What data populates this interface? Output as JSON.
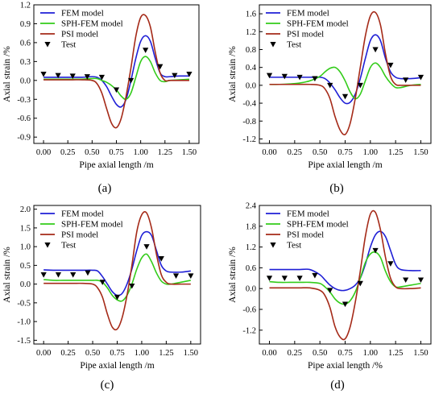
{
  "chart_data": [
    {
      "type": "line",
      "panel_label": "(a)",
      "xlabel": "Pipe axial length /m",
      "ylabel": "Axial strain /%",
      "xlim": [
        -0.1,
        1.6
      ],
      "ylim": [
        -1.0,
        1.2
      ],
      "xticks": [
        0.0,
        0.25,
        0.5,
        0.75,
        1.0,
        1.25,
        1.5
      ],
      "xtick_labels": [
        "0.00",
        "0.25",
        "0.50",
        "0.75",
        "1.00",
        "1.25",
        "1.50"
      ],
      "yticks": [
        -0.9,
        -0.6,
        -0.3,
        0.0,
        0.3,
        0.6,
        0.9,
        1.2
      ],
      "ytick_labels": [
        "-0.9",
        "-0.6",
        "-0.3",
        "0.0",
        "0.3",
        "0.6",
        "0.9",
        "1.2"
      ],
      "legend_position": "top-left",
      "series": [
        {
          "name": "FEM model",
          "color": "#1f1fd6",
          "x": [
            0.0,
            0.1,
            0.2,
            0.3,
            0.4,
            0.5,
            0.55,
            0.6,
            0.65,
            0.7,
            0.75,
            0.8,
            0.85,
            0.9,
            0.95,
            1.0,
            1.05,
            1.1,
            1.15,
            1.2,
            1.25,
            1.3,
            1.4,
            1.5
          ],
          "y": [
            0.05,
            0.05,
            0.05,
            0.05,
            0.05,
            0.06,
            0.05,
            0.0,
            -0.1,
            -0.25,
            -0.38,
            -0.42,
            -0.3,
            0.0,
            0.35,
            0.62,
            0.71,
            0.62,
            0.35,
            0.12,
            0.06,
            0.06,
            0.07,
            0.07
          ]
        },
        {
          "name": "SPH-FEM model",
          "color": "#33cc1a",
          "x": [
            0.0,
            0.1,
            0.2,
            0.3,
            0.4,
            0.5,
            0.55,
            0.6,
            0.65,
            0.7,
            0.75,
            0.8,
            0.85,
            0.9,
            0.95,
            1.0,
            1.05,
            1.1,
            1.15,
            1.2,
            1.25,
            1.3,
            1.4,
            1.5
          ],
          "y": [
            0.02,
            0.02,
            0.02,
            0.02,
            0.02,
            0.03,
            0.03,
            0.0,
            -0.03,
            -0.08,
            -0.15,
            -0.25,
            -0.3,
            -0.2,
            0.05,
            0.3,
            0.38,
            0.3,
            0.12,
            0.0,
            -0.02,
            0.0,
            0.01,
            0.02
          ]
        },
        {
          "name": "PSI model",
          "color": "#a52a18",
          "x": [
            0.0,
            0.1,
            0.2,
            0.3,
            0.4,
            0.5,
            0.55,
            0.6,
            0.65,
            0.7,
            0.75,
            0.8,
            0.85,
            0.9,
            0.95,
            1.0,
            1.05,
            1.1,
            1.15,
            1.2,
            1.25,
            1.3,
            1.4,
            1.5
          ],
          "y": [
            0.01,
            0.01,
            0.01,
            0.01,
            0.01,
            0.0,
            -0.05,
            -0.2,
            -0.45,
            -0.68,
            -0.75,
            -0.6,
            -0.25,
            0.2,
            0.7,
            1.0,
            1.03,
            0.85,
            0.45,
            0.12,
            0.0,
            0.0,
            0.0,
            0.0
          ]
        },
        {
          "name": "Test",
          "color": "#000000",
          "marker": "triangle-down",
          "x": [
            0.0,
            0.15,
            0.3,
            0.45,
            0.6,
            0.75,
            0.9,
            1.05,
            1.2,
            1.35,
            1.5
          ],
          "y": [
            0.1,
            0.08,
            0.07,
            0.06,
            0.05,
            -0.15,
            0.0,
            0.48,
            0.22,
            0.08,
            0.1
          ]
        }
      ]
    },
    {
      "type": "line",
      "panel_label": "(b)",
      "xlabel": "Pipe axial length /m",
      "ylabel": "Axial strain /%",
      "xlim": [
        -0.1,
        1.6
      ],
      "ylim": [
        -1.3,
        1.8
      ],
      "xticks": [
        0.0,
        0.25,
        0.5,
        0.75,
        1.0,
        1.25,
        1.5
      ],
      "xtick_labels": [
        "0.00",
        "0.25",
        "0.50",
        "0.75",
        "1.00",
        "1.25",
        "1.50"
      ],
      "yticks": [
        -1.2,
        -0.8,
        -0.4,
        0.0,
        0.4,
        0.8,
        1.2,
        1.6
      ],
      "ytick_labels": [
        "-1.2",
        "-0.8",
        "-0.4",
        "0.0",
        "0.4",
        "0.8",
        "1.2",
        "1.6"
      ],
      "legend_position": "top-left",
      "series": [
        {
          "name": "FEM model",
          "color": "#1f1fd6",
          "x": [
            0.0,
            0.1,
            0.2,
            0.3,
            0.4,
            0.5,
            0.55,
            0.6,
            0.65,
            0.7,
            0.75,
            0.8,
            0.85,
            0.9,
            0.95,
            1.0,
            1.05,
            1.1,
            1.15,
            1.2,
            1.25,
            1.3,
            1.4,
            1.5
          ],
          "y": [
            0.18,
            0.18,
            0.18,
            0.18,
            0.18,
            0.18,
            0.15,
            0.05,
            -0.1,
            -0.28,
            -0.4,
            -0.38,
            -0.2,
            0.15,
            0.6,
            1.0,
            1.13,
            1.0,
            0.6,
            0.3,
            0.18,
            0.15,
            0.15,
            0.17
          ]
        },
        {
          "name": "SPH-FEM model",
          "color": "#33cc1a",
          "x": [
            0.0,
            0.1,
            0.2,
            0.3,
            0.4,
            0.5,
            0.55,
            0.6,
            0.65,
            0.7,
            0.75,
            0.8,
            0.85,
            0.9,
            0.95,
            1.0,
            1.05,
            1.1,
            1.15,
            1.2,
            1.25,
            1.3,
            1.4,
            1.5
          ],
          "y": [
            0.02,
            0.02,
            0.03,
            0.05,
            0.1,
            0.2,
            0.3,
            0.38,
            0.4,
            0.3,
            0.1,
            -0.15,
            -0.3,
            -0.2,
            0.1,
            0.4,
            0.5,
            0.4,
            0.2,
            0.05,
            -0.05,
            -0.05,
            0.0,
            0.02
          ]
        },
        {
          "name": "PSI model",
          "color": "#a52a18",
          "x": [
            0.0,
            0.1,
            0.2,
            0.3,
            0.4,
            0.5,
            0.55,
            0.6,
            0.65,
            0.7,
            0.75,
            0.8,
            0.85,
            0.9,
            0.95,
            1.0,
            1.05,
            1.1,
            1.15,
            1.2,
            1.25,
            1.3,
            1.4,
            1.5
          ],
          "y": [
            0.02,
            0.02,
            0.02,
            0.02,
            0.02,
            0.0,
            -0.08,
            -0.3,
            -0.7,
            -1.0,
            -1.1,
            -0.85,
            -0.3,
            0.4,
            1.1,
            1.55,
            1.63,
            1.35,
            0.7,
            0.2,
            0.02,
            0.0,
            0.0,
            0.0
          ]
        },
        {
          "name": "Test",
          "color": "#000000",
          "marker": "triangle-down",
          "x": [
            0.0,
            0.15,
            0.3,
            0.45,
            0.6,
            0.75,
            0.9,
            1.05,
            1.2,
            1.35,
            1.5
          ],
          "y": [
            0.22,
            0.2,
            0.18,
            0.15,
            0.0,
            -0.25,
            0.0,
            0.8,
            0.45,
            0.12,
            0.18
          ]
        }
      ]
    },
    {
      "type": "line",
      "panel_label": "(c)",
      "xlabel": "Pipe axial length /m",
      "ylabel": "Axial strain /%",
      "xlim": [
        -0.1,
        1.6
      ],
      "ylim": [
        -1.6,
        2.1
      ],
      "xticks": [
        0.0,
        0.25,
        0.5,
        0.75,
        1.0,
        1.25,
        1.5
      ],
      "xtick_labels": [
        "0.00",
        "0.25",
        "0.50",
        "0.75",
        "1.00",
        "1.25",
        "1.50"
      ],
      "yticks": [
        -1.5,
        -1.0,
        -0.5,
        0.0,
        0.5,
        1.0,
        1.5,
        2.0
      ],
      "ytick_labels": [
        "-1.5",
        "-1.0",
        "-0.5",
        "0.0",
        "0.5",
        "1.0",
        "1.5",
        "2.0"
      ],
      "legend_position": "top-left",
      "series": [
        {
          "name": "FEM model",
          "color": "#1f1fd6",
          "x": [
            0.0,
            0.1,
            0.2,
            0.3,
            0.4,
            0.5,
            0.55,
            0.6,
            0.65,
            0.7,
            0.75,
            0.8,
            0.85,
            0.9,
            0.95,
            1.0,
            1.05,
            1.1,
            1.15,
            1.2,
            1.25,
            1.3,
            1.4,
            1.5
          ],
          "y": [
            0.38,
            0.37,
            0.37,
            0.37,
            0.37,
            0.37,
            0.35,
            0.2,
            0.0,
            -0.2,
            -0.3,
            -0.25,
            0.0,
            0.4,
            0.9,
            1.3,
            1.4,
            1.3,
            0.9,
            0.5,
            0.35,
            0.32,
            0.32,
            0.35
          ]
        },
        {
          "name": "SPH-FEM model",
          "color": "#33cc1a",
          "x": [
            0.0,
            0.1,
            0.2,
            0.3,
            0.4,
            0.5,
            0.55,
            0.6,
            0.65,
            0.7,
            0.75,
            0.8,
            0.85,
            0.9,
            0.95,
            1.0,
            1.05,
            1.1,
            1.15,
            1.2,
            1.25,
            1.3,
            1.4,
            1.5
          ],
          "y": [
            0.12,
            0.1,
            0.1,
            0.1,
            0.1,
            0.1,
            0.1,
            0.05,
            -0.1,
            -0.3,
            -0.42,
            -0.45,
            -0.3,
            0.0,
            0.4,
            0.7,
            0.8,
            0.6,
            0.3,
            0.08,
            0.0,
            0.0,
            0.05,
            0.1
          ]
        },
        {
          "name": "PSI model",
          "color": "#a52a18",
          "x": [
            0.0,
            0.1,
            0.2,
            0.3,
            0.4,
            0.5,
            0.55,
            0.6,
            0.65,
            0.7,
            0.75,
            0.8,
            0.85,
            0.9,
            0.95,
            1.0,
            1.05,
            1.1,
            1.15,
            1.2,
            1.25,
            1.3,
            1.4,
            1.5
          ],
          "y": [
            0.02,
            0.02,
            0.02,
            0.02,
            0.02,
            0.0,
            -0.1,
            -0.35,
            -0.8,
            -1.15,
            -1.2,
            -0.9,
            -0.3,
            0.5,
            1.4,
            1.85,
            1.9,
            1.5,
            0.8,
            0.25,
            0.05,
            0.0,
            0.0,
            0.0
          ]
        },
        {
          "name": "Test",
          "color": "#000000",
          "marker": "triangle-down",
          "x": [
            0.0,
            0.15,
            0.3,
            0.45,
            0.6,
            0.75,
            0.9,
            1.05,
            1.2,
            1.35,
            1.5
          ],
          "y": [
            0.25,
            0.25,
            0.25,
            0.3,
            0.05,
            -0.35,
            -0.05,
            1.0,
            0.68,
            0.22,
            0.22
          ]
        }
      ]
    },
    {
      "type": "line",
      "panel_label": "(d)",
      "xlabel": "Pipe axial length /%",
      "ylabel": "Axial strain /%",
      "xlim": [
        -0.1,
        1.6
      ],
      "ylim": [
        -1.6,
        2.4
      ],
      "xticks": [
        0.0,
        0.25,
        0.5,
        0.75,
        1.0,
        1.25,
        1.5
      ],
      "xtick_labels": [
        "0.00",
        "0.25",
        "0.50",
        "0.75",
        "1.00",
        "1.25",
        "1.50"
      ],
      "yticks": [
        -1.2,
        -0.6,
        0.0,
        0.6,
        1.2,
        1.8,
        2.4
      ],
      "ytick_labels": [
        "-1.2",
        "-0.6",
        "0.0",
        "0.6",
        "1.2",
        "1.8",
        "2.4"
      ],
      "legend_position": "top-left",
      "series": [
        {
          "name": "FEM model",
          "color": "#1f1fd6",
          "x": [
            0.0,
            0.1,
            0.2,
            0.3,
            0.4,
            0.5,
            0.55,
            0.6,
            0.65,
            0.7,
            0.75,
            0.8,
            0.85,
            0.9,
            0.95,
            1.0,
            1.05,
            1.1,
            1.15,
            1.2,
            1.25,
            1.3,
            1.4,
            1.5
          ],
          "y": [
            0.55,
            0.55,
            0.55,
            0.55,
            0.55,
            0.4,
            0.25,
            0.1,
            0.0,
            -0.05,
            -0.05,
            0.0,
            0.1,
            0.3,
            0.7,
            1.2,
            1.55,
            1.65,
            1.5,
            1.1,
            0.7,
            0.55,
            0.52,
            0.52
          ]
        },
        {
          "name": "SPH-FEM model",
          "color": "#33cc1a",
          "x": [
            0.0,
            0.1,
            0.2,
            0.3,
            0.4,
            0.5,
            0.55,
            0.6,
            0.65,
            0.7,
            0.75,
            0.8,
            0.85,
            0.9,
            0.95,
            1.0,
            1.05,
            1.1,
            1.15,
            1.2,
            1.25,
            1.3,
            1.4,
            1.5
          ],
          "y": [
            0.2,
            0.18,
            0.18,
            0.18,
            0.18,
            0.15,
            0.05,
            -0.1,
            -0.3,
            -0.42,
            -0.45,
            -0.35,
            -0.1,
            0.3,
            0.75,
            1.0,
            1.05,
            0.9,
            0.5,
            0.2,
            0.05,
            0.05,
            0.1,
            0.15
          ]
        },
        {
          "name": "PSI model",
          "color": "#a52a18",
          "x": [
            0.0,
            0.1,
            0.2,
            0.3,
            0.4,
            0.5,
            0.55,
            0.6,
            0.65,
            0.7,
            0.75,
            0.8,
            0.85,
            0.9,
            0.95,
            1.0,
            1.05,
            1.1,
            1.15,
            1.2,
            1.25,
            1.3,
            1.4,
            1.5
          ],
          "y": [
            0.02,
            0.02,
            0.02,
            0.02,
            0.02,
            -0.05,
            -0.2,
            -0.55,
            -1.1,
            -1.4,
            -1.45,
            -1.1,
            -0.4,
            0.5,
            1.5,
            2.15,
            2.2,
            1.7,
            0.9,
            0.3,
            0.05,
            0.0,
            0.0,
            0.02
          ]
        },
        {
          "name": "Test",
          "color": "#000000",
          "marker": "triangle-down",
          "x": [
            0.0,
            0.15,
            0.3,
            0.45,
            0.6,
            0.75,
            0.9,
            1.05,
            1.2,
            1.35,
            1.5
          ],
          "y": [
            0.3,
            0.3,
            0.3,
            0.38,
            -0.05,
            -0.45,
            0.15,
            1.1,
            0.72,
            0.25,
            0.25
          ]
        }
      ]
    }
  ]
}
